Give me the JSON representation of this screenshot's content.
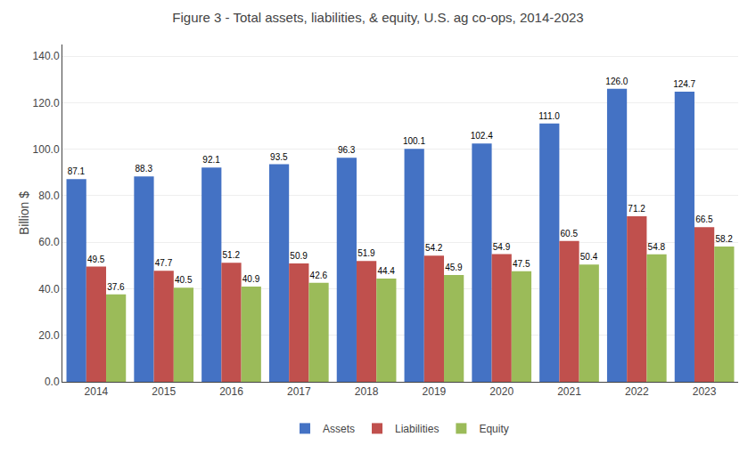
{
  "chart_data": {
    "type": "bar",
    "title": "Figure 3 - Total assets, liabilities, & equity, U.S. ag co-ops, 2014-2023",
    "categories": [
      "2014",
      "2015",
      "2016",
      "2017",
      "2018",
      "2019",
      "2020",
      "2021",
      "2022",
      "2023"
    ],
    "series": [
      {
        "name": "Assets",
        "color": "#4472C4",
        "values": [
          87.1,
          88.3,
          92.1,
          93.5,
          96.3,
          100.1,
          102.4,
          111.0,
          126.0,
          124.7
        ],
        "value_labels": [
          "87.1",
          "88.3",
          "92.1",
          "93.5",
          "96.3",
          "100.1",
          "102.4",
          "111.0",
          "126.0",
          "124.7"
        ]
      },
      {
        "name": "Liabilities",
        "color": "#C0504D",
        "values": [
          49.5,
          47.7,
          51.2,
          50.9,
          51.9,
          54.2,
          54.9,
          60.5,
          71.2,
          66.5
        ]
      },
      {
        "name": "Equity",
        "color": "#9BBB59",
        "values": [
          37.6,
          40.5,
          40.9,
          42.6,
          44.4,
          45.9,
          47.5,
          50.4,
          54.8,
          58.2
        ]
      }
    ],
    "ylabel": "Billion $",
    "ylim": [
      0,
      145
    ],
    "yticks": [
      {
        "value": 0,
        "label": "0.0"
      },
      {
        "value": 20,
        "label": "20.0"
      },
      {
        "value": 40,
        "label": "40.0"
      },
      {
        "value": 60,
        "label": "60.0"
      },
      {
        "value": 80,
        "label": "80.0"
      },
      {
        "value": 100,
        "label": "100.0"
      },
      {
        "value": 120,
        "label": "120.0"
      },
      {
        "value": 140,
        "label": "140.0"
      }
    ],
    "grid": true,
    "legend": "bottom",
    "data_labels": true
  }
}
